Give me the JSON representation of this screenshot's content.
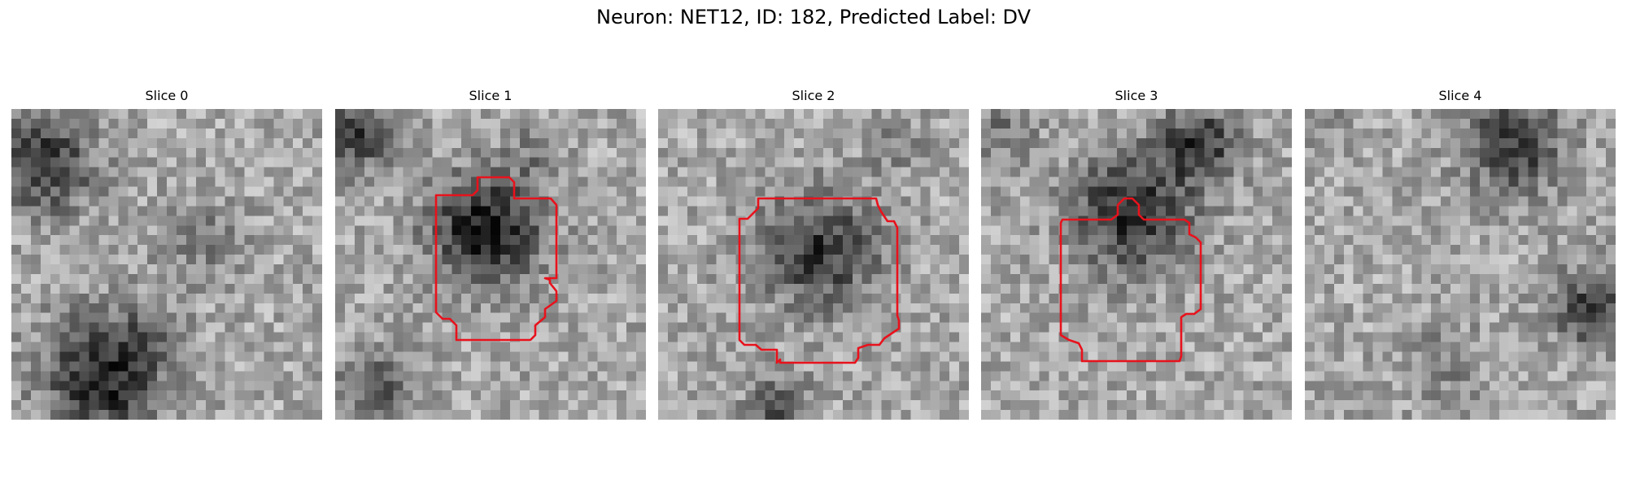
{
  "figure": {
    "title": "Neuron: NET12, ID: 182, Predicted Label: DV",
    "outline_color": "#e8121c",
    "colormap": "gray"
  },
  "slices": [
    {
      "title": "Slice 0",
      "has_outline": false
    },
    {
      "title": "Slice 1",
      "has_outline": true
    },
    {
      "title": "Slice 2",
      "has_outline": true
    },
    {
      "title": "Slice 3",
      "has_outline": true
    },
    {
      "title": "Slice 4",
      "has_outline": false
    }
  ]
}
